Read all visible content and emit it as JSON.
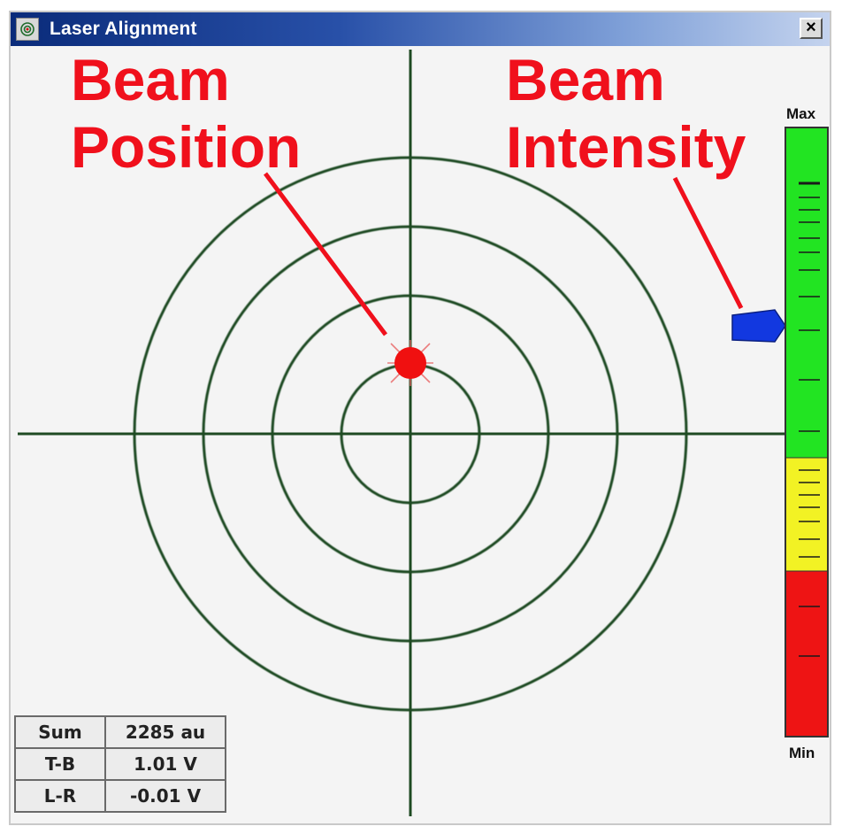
{
  "window": {
    "title": "Laser Alignment",
    "icon": "target-icon",
    "close_label": "×"
  },
  "annotations": {
    "beam_position": [
      "Beam",
      "Position"
    ],
    "beam_intensity": [
      "Beam",
      "Intensity"
    ],
    "color": "#f0101c"
  },
  "target": {
    "ring_count": 4,
    "line_color": "#1e4a22",
    "beam_dot_color": "#f01010"
  },
  "intensity_meter": {
    "max_label": "Max",
    "min_label": "Min",
    "level": 0.67,
    "zones": [
      {
        "name": "green",
        "color": "#22e422",
        "from": 0.27,
        "to": 1.0
      },
      {
        "name": "yellow",
        "color": "#f2f224",
        "from": 0.27,
        "to": 0.45
      },
      {
        "name": "red",
        "color": "#ee1414",
        "from": 0.0,
        "to": 0.27
      }
    ],
    "indicator_color": "#1238e0"
  },
  "readout": [
    {
      "label": "Sum",
      "value": "2285 au"
    },
    {
      "label": "T-B",
      "value": "1.01 V"
    },
    {
      "label": "L-R",
      "value": "-0.01 V"
    }
  ]
}
